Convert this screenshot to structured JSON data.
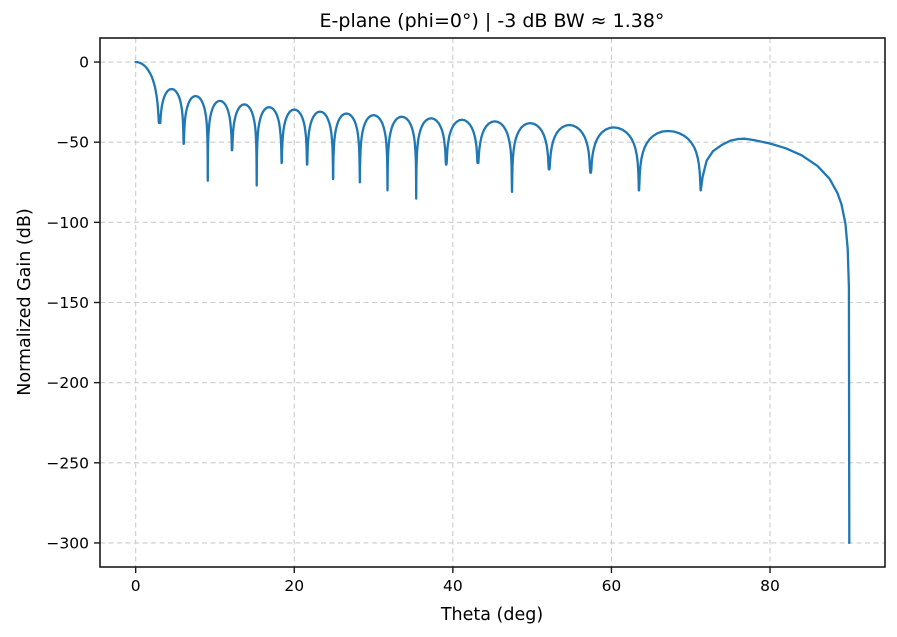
{
  "chart_data": {
    "type": "line",
    "title": "E-plane (phi=0°)  |  -3 dB BW ≈ 1.38°",
    "xlabel": "Theta (deg)",
    "ylabel": "Normalized Gain (dB)",
    "xlim": [
      -4.5,
      94.5
    ],
    "ylim": [
      -315,
      15
    ],
    "x_ticks": [
      0,
      20,
      40,
      60,
      80
    ],
    "y_ticks": [
      0,
      -50,
      -100,
      -150,
      -200,
      -250,
      -300
    ],
    "grid": {
      "on": true,
      "style": "dashed"
    },
    "legend": null,
    "colors": {
      "line": "#1f77b4",
      "grid": "#cbcbcb",
      "spine": "#1a1a1a",
      "text": "#000000",
      "background": "#ffffff"
    },
    "line_width": 2.3,
    "pattern": {
      "description": "Linear-array E-plane cut: main lobe at 0 deg (0 dB), 18 sidelobes with nulls at asin(k/19), element rolloff to -300 dB clip at 90 deg",
      "main_lobe": {
        "peak_deg": 0,
        "peak_db": 0,
        "first_null_deg": 3.02,
        "half_power_bw_deg": 1.38,
        "shape_exp": 1.5
      },
      "sidelobe_nulls_deg": [
        3.02,
        6.05,
        9.09,
        12.15,
        15.26,
        18.41,
        21.62,
        24.9,
        28.27,
        31.76,
        35.38,
        39.16,
        43.16,
        47.46,
        52.14,
        57.37,
        63.47,
        71.27
      ],
      "sidelobe_null_depths_db": [
        -38,
        -51,
        -74,
        -55,
        -77,
        -63,
        -64,
        -73,
        -75,
        -80,
        -86,
        -64,
        -63,
        -81,
        -67,
        -69,
        -80,
        -80
      ],
      "sidelobe_peaks_deg": [
        4.53,
        7.56,
        10.62,
        13.7,
        16.83,
        20.01,
        23.25,
        26.58,
        30.0,
        33.55,
        37.25,
        41.14,
        45.28,
        49.74,
        54.67,
        60.26,
        67.08,
        76.83
      ],
      "sidelobe_peaks_db": [
        -16.8,
        -21.2,
        -24.2,
        -26.4,
        -28.1,
        -29.6,
        -30.9,
        -32.1,
        -33.1,
        -34.1,
        -35.1,
        -36.0,
        -37.0,
        -38.1,
        -39.3,
        -40.8,
        -43.0,
        -47.8
      ],
      "tail_points": [
        [
          71.27,
          -80
        ],
        [
          71.5,
          -71.6
        ],
        [
          72,
          -61.6
        ],
        [
          72.8,
          -55.6
        ],
        [
          74,
          -51.5
        ],
        [
          75,
          -49.0
        ],
        [
          76,
          -48.0
        ],
        [
          76.83,
          -47.8
        ],
        [
          78,
          -48.7
        ],
        [
          80,
          -50.8
        ],
        [
          82,
          -53.8
        ],
        [
          84,
          -58.2
        ],
        [
          86,
          -64.9
        ],
        [
          87.5,
          -72.8
        ],
        [
          88.5,
          -81.6
        ],
        [
          89,
          -88.6
        ],
        [
          89.5,
          -100.6
        ],
        [
          89.8,
          -116.5
        ],
        [
          89.95,
          -140.5
        ],
        [
          90,
          -300
        ]
      ],
      "floor_db": -300
    }
  }
}
